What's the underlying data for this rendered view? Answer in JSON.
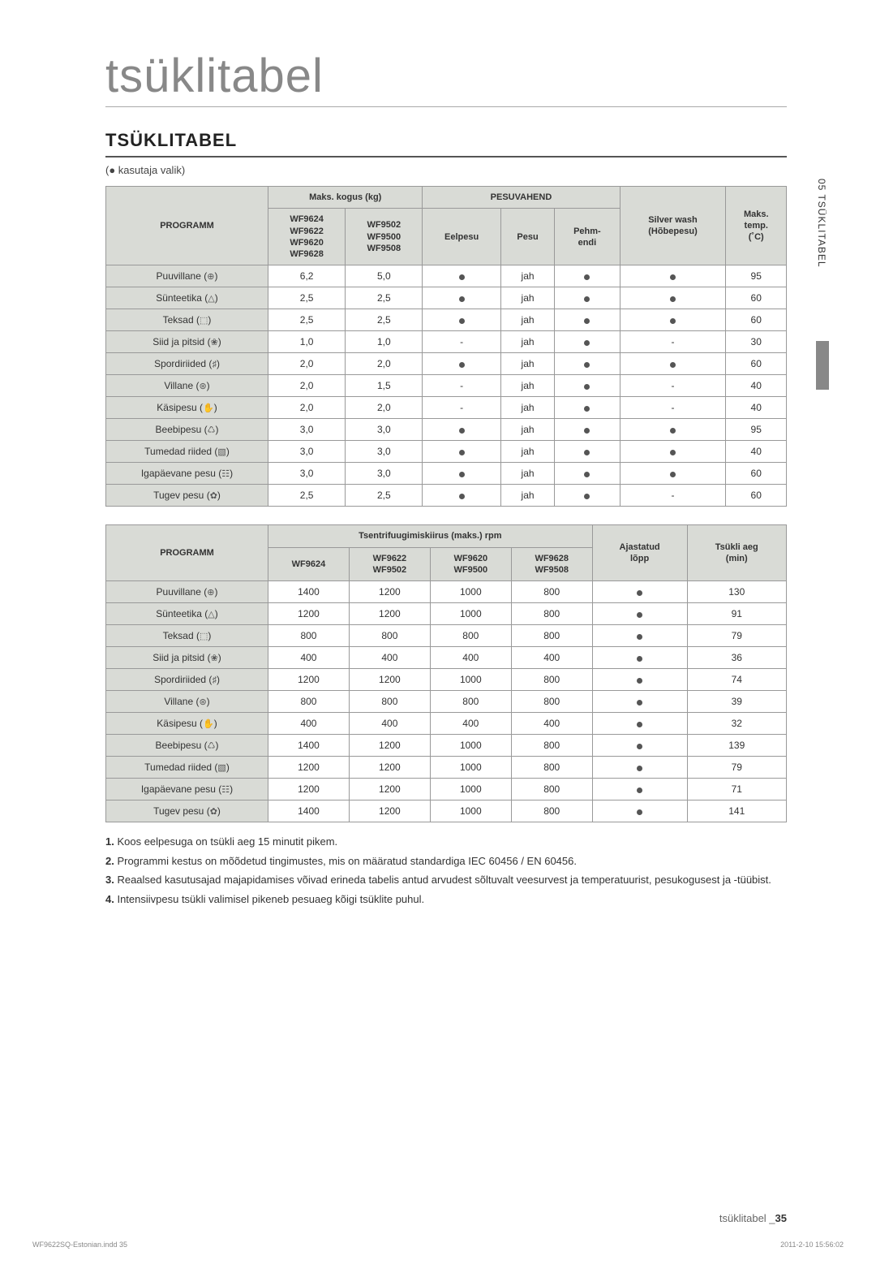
{
  "title_main": "tsüklitabel",
  "section": "TSÜKLITABEL",
  "subtitle": "(● kasutaja valik)",
  "side_tab": "05 TSÜKLITABEL",
  "table1": {
    "h_program": "PROGRAMM",
    "h_maks": "Maks. kogus (kg)",
    "h_models_a": "WF9624\nWF9622\nWF9620\nWF9628",
    "h_models_b": "WF9502\nWF9500\nWF9508",
    "h_pesuvahend": "PESUVAHEND",
    "h_eelpesu": "Eelpesu",
    "h_pesu": "Pesu",
    "h_pehmendi": "Pehm-\nendi",
    "h_silver": "Silver wash\n(Hõbepesu)",
    "h_temp": "Maks.\ntemp.\n(˚C)",
    "rows": [
      {
        "p": "Puuvillane",
        "ic": "⊕",
        "a": "6,2",
        "b": "5,0",
        "e": "dot",
        "ps": "jah",
        "pm": "dot",
        "sw": "dot",
        "t": "95"
      },
      {
        "p": "Sünteetika",
        "ic": "△",
        "a": "2,5",
        "b": "2,5",
        "e": "dot",
        "ps": "jah",
        "pm": "dot",
        "sw": "dot",
        "t": "60"
      },
      {
        "p": "Teksad",
        "ic": "⬚",
        "a": "2,5",
        "b": "2,5",
        "e": "dot",
        "ps": "jah",
        "pm": "dot",
        "sw": "dot",
        "t": "60"
      },
      {
        "p": "Siid ja pitsid",
        "ic": "❀",
        "a": "1,0",
        "b": "1,0",
        "e": "-",
        "ps": "jah",
        "pm": "dot",
        "sw": "-",
        "t": "30"
      },
      {
        "p": "Spordiriided",
        "ic": "♯",
        "a": "2,0",
        "b": "2,0",
        "e": "dot",
        "ps": "jah",
        "pm": "dot",
        "sw": "dot",
        "t": "60"
      },
      {
        "p": "Villane",
        "ic": "⊛",
        "a": "2,0",
        "b": "1,5",
        "e": "-",
        "ps": "jah",
        "pm": "dot",
        "sw": "-",
        "t": "40"
      },
      {
        "p": "Käsipesu",
        "ic": "✋",
        "a": "2,0",
        "b": "2,0",
        "e": "-",
        "ps": "jah",
        "pm": "dot",
        "sw": "-",
        "t": "40"
      },
      {
        "p": "Beebipesu",
        "ic": "♺",
        "a": "3,0",
        "b": "3,0",
        "e": "dot",
        "ps": "jah",
        "pm": "dot",
        "sw": "dot",
        "t": "95"
      },
      {
        "p": "Tumedad riided",
        "ic": "▧",
        "a": "3,0",
        "b": "3,0",
        "e": "dot",
        "ps": "jah",
        "pm": "dot",
        "sw": "dot",
        "t": "40"
      },
      {
        "p": "Igapäevane pesu",
        "ic": "☷",
        "a": "3,0",
        "b": "3,0",
        "e": "dot",
        "ps": "jah",
        "pm": "dot",
        "sw": "dot",
        "t": "60"
      },
      {
        "p": "Tugev pesu",
        "ic": "✿",
        "a": "2,5",
        "b": "2,5",
        "e": "dot",
        "ps": "jah",
        "pm": "dot",
        "sw": "-",
        "t": "60"
      }
    ]
  },
  "table2": {
    "h_program": "PROGRAMM",
    "h_rpm": "Tsentrifuugimiskiirus (maks.) rpm",
    "h_m1": "WF9624",
    "h_m2": "WF9622\nWF9502",
    "h_m3": "WF9620\nWF9500",
    "h_m4": "WF9628\nWF9508",
    "h_aja": "Ajastatud\nlõpp",
    "h_aeg": "Tsükli aeg\n(min)",
    "rows": [
      {
        "p": "Puuvillane",
        "ic": "⊕",
        "v": [
          "1400",
          "1200",
          "1000",
          "800"
        ],
        "a": "dot",
        "t": "130"
      },
      {
        "p": "Sünteetika",
        "ic": "△",
        "v": [
          "1200",
          "1200",
          "1000",
          "800"
        ],
        "a": "dot",
        "t": "91"
      },
      {
        "p": "Teksad",
        "ic": "⬚",
        "v": [
          "800",
          "800",
          "800",
          "800"
        ],
        "a": "dot",
        "t": "79"
      },
      {
        "p": "Siid ja pitsid",
        "ic": "❀",
        "v": [
          "400",
          "400",
          "400",
          "400"
        ],
        "a": "dot",
        "t": "36"
      },
      {
        "p": "Spordiriided",
        "ic": "♯",
        "v": [
          "1200",
          "1200",
          "1000",
          "800"
        ],
        "a": "dot",
        "t": "74"
      },
      {
        "p": "Villane",
        "ic": "⊛",
        "v": [
          "800",
          "800",
          "800",
          "800"
        ],
        "a": "dot",
        "t": "39"
      },
      {
        "p": "Käsipesu",
        "ic": "✋",
        "v": [
          "400",
          "400",
          "400",
          "400"
        ],
        "a": "dot",
        "t": "32"
      },
      {
        "p": "Beebipesu",
        "ic": "♺",
        "v": [
          "1400",
          "1200",
          "1000",
          "800"
        ],
        "a": "dot",
        "t": "139"
      },
      {
        "p": "Tumedad riided",
        "ic": "▧",
        "v": [
          "1200",
          "1200",
          "1000",
          "800"
        ],
        "a": "dot",
        "t": "79"
      },
      {
        "p": "Igapäevane pesu",
        "ic": "☷",
        "v": [
          "1200",
          "1200",
          "1000",
          "800"
        ],
        "a": "dot",
        "t": "71"
      },
      {
        "p": "Tugev pesu",
        "ic": "✿",
        "v": [
          "1400",
          "1200",
          "1000",
          "800"
        ],
        "a": "dot",
        "t": "141"
      }
    ]
  },
  "notes": [
    "Koos eelpesuga on tsükli aeg 15 minutit pikem.",
    "Programmi kestus on mõõdetud tingimustes, mis on määratud standardiga IEC 60456 / EN 60456.",
    "Reaalsed kasutusajad majapidamises võivad erineda tabelis antud arvudest sõltuvalt veesurvest ja temperatuurist, pesukogusest ja -tüübist.",
    "Intensiivpesu tsükli valimisel pikeneb pesuaeg kõigi tsüklite puhul."
  ],
  "footer_text": "tsüklitabel _",
  "footer_page": "35",
  "print_left": "WF9622SQ-Estonian.indd   35",
  "print_right": "2011-2-10   15:56:02"
}
